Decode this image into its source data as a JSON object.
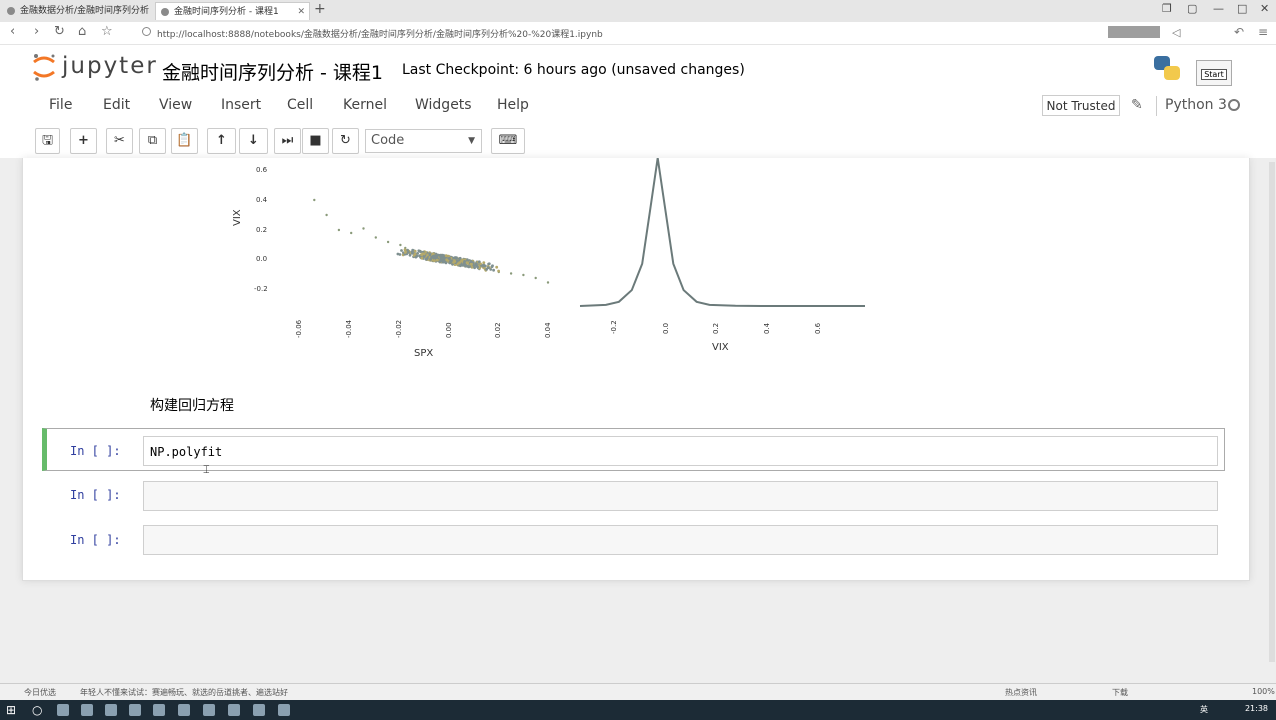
{
  "browser": {
    "tabs": [
      {
        "title": "金融数据分析/金融时间序列分析"
      },
      {
        "title": "金融时间序列分析 - 课程1"
      }
    ],
    "new_tab": "+",
    "url": "http://localhost:8888/notebooks/金融数据分析/金融时间序列分析/金融时间序列分析%20-%20课程1.ipynb",
    "tooltip": "Start"
  },
  "jupyter": {
    "logo_text": "jupyter",
    "notebook_title": "金融时间序列分析 - 课程1",
    "checkpoint": "Last Checkpoint: 6 hours ago (unsaved changes)",
    "menu": [
      "File",
      "Edit",
      "View",
      "Insert",
      "Cell",
      "Kernel",
      "Widgets",
      "Help"
    ],
    "trusted": "Not Trusted",
    "kernel_name": "Python 3",
    "toolbar": {
      "cell_type": "Code",
      "icons": [
        "save-icon",
        "plus-icon",
        "cut-icon",
        "copy-icon",
        "paste-icon",
        "arrow-up-icon",
        "arrow-down-icon",
        "step-forward-icon",
        "stop-icon",
        "refresh-icon",
        "keyboard-icon"
      ]
    }
  },
  "output": {
    "scatter": {
      "ylabel": "VIX",
      "xlabel": "SPX",
      "yticks": [
        "0.6",
        "0.4",
        "0.2",
        "0.0",
        "-0.2"
      ],
      "xticks": [
        "-0.06",
        "-0.04",
        "-0.02",
        "0.00",
        "0.02",
        "0.04"
      ]
    },
    "density": {
      "xlabel": "VIX",
      "xticks": [
        "-0.2",
        "0.0",
        "0.2",
        "0.4",
        "0.6"
      ]
    }
  },
  "chart_data": [
    {
      "type": "scatter",
      "xlabel": "SPX",
      "ylabel": "VIX",
      "xlim": [
        -0.06,
        0.04
      ],
      "ylim": [
        -0.2,
        0.6
      ],
      "points": [
        [
          -0.045,
          0.2
        ],
        [
          -0.04,
          0.18
        ],
        [
          -0.035,
          0.21
        ],
        [
          -0.03,
          0.15
        ],
        [
          -0.025,
          0.12
        ],
        [
          -0.02,
          0.1
        ],
        [
          -0.018,
          0.08
        ],
        [
          -0.015,
          0.05
        ],
        [
          -0.012,
          0.06
        ],
        [
          -0.01,
          0.04
        ],
        [
          -0.008,
          0.03
        ],
        [
          -0.005,
          0.02
        ],
        [
          -0.003,
          0.01
        ],
        [
          0.0,
          0.0
        ],
        [
          0.003,
          -0.01
        ],
        [
          0.005,
          -0.02
        ],
        [
          0.008,
          -0.03
        ],
        [
          0.01,
          -0.04
        ],
        [
          0.012,
          -0.05
        ],
        [
          0.015,
          -0.06
        ],
        [
          0.02,
          -0.08
        ],
        [
          0.025,
          -0.09
        ],
        [
          0.03,
          -0.1
        ],
        [
          0.035,
          -0.12
        ],
        [
          -0.055,
          0.4
        ],
        [
          -0.05,
          0.3
        ],
        [
          0.04,
          -0.15
        ]
      ]
    },
    {
      "type": "line",
      "xlabel": "VIX",
      "xlim": [
        -0.3,
        0.8
      ],
      "x": [
        -0.3,
        -0.2,
        -0.15,
        -0.1,
        -0.06,
        -0.03,
        0.0,
        0.03,
        0.06,
        0.1,
        0.15,
        0.2,
        0.3,
        0.4,
        0.6,
        0.8
      ],
      "y": [
        0.0,
        0.1,
        0.4,
        1.5,
        4.0,
        9.0,
        14.0,
        9.0,
        4.0,
        1.5,
        0.4,
        0.1,
        0.02,
        0.0,
        0.0,
        0.0
      ]
    }
  ],
  "cells": [
    {
      "type": "markdown",
      "text": "构建回归方程"
    },
    {
      "type": "code",
      "prompt": "In  [  ]:",
      "code": "NP.polyfit",
      "active": true
    },
    {
      "type": "code",
      "prompt": "In  [  ]:",
      "code": ""
    },
    {
      "type": "code",
      "prompt": "In  [  ]:",
      "code": ""
    }
  ],
  "statusbar": {
    "left": "今日优选",
    "news": "年轻人不懂来试试：赛遍畅玩、就选的岳道挑者、遍选站好",
    "right": "热点资讯",
    "download": "下载",
    "zoom": "100%"
  },
  "taskbar": {
    "lang": "英",
    "time": "21:38"
  }
}
